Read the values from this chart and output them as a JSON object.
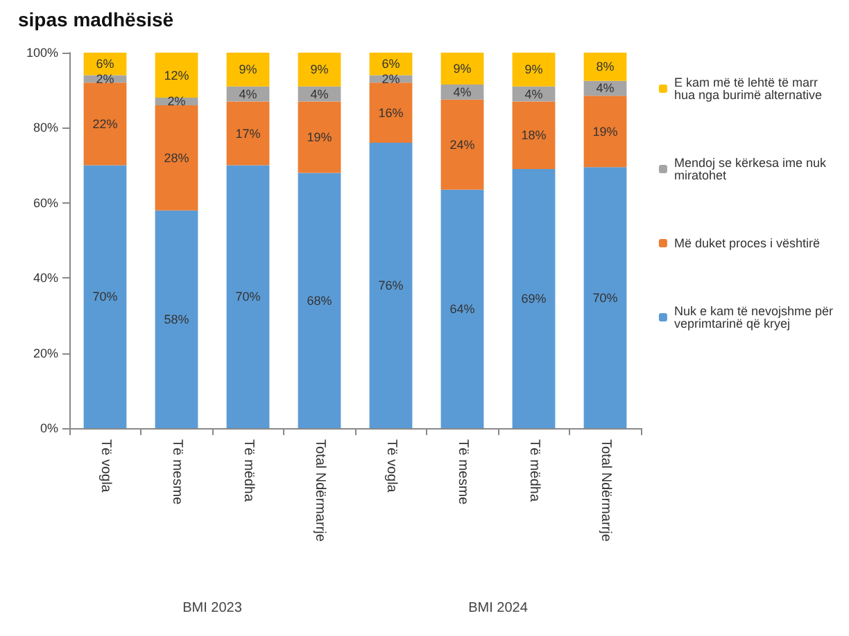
{
  "chart_data": {
    "type": "bar",
    "title": "sipas madhësisë",
    "stacked": true,
    "categories": [
      "Të vogla",
      "Të mesme",
      "Të mëdha",
      "Total Ndërmarrje",
      "Të vogla",
      "Të mesme",
      "Të mëdha",
      "Total Ndërmarrje"
    ],
    "annotations": [
      "BMI 2023",
      "BMI 2024"
    ],
    "series": [
      {
        "name": "Nuk e kam të nevojshme për veprimtarinë që kryej",
        "color": "#5b9bd5",
        "values": [
          70,
          58,
          70,
          68,
          76,
          63.5,
          69,
          69.5
        ],
        "value_labels": [
          "70%",
          "58%",
          "70%",
          "68%",
          "76%",
          "64%",
          "69%",
          "70%"
        ]
      },
      {
        "name": "Më duket proces i vështirë",
        "color": "#ed7d31",
        "values": [
          22,
          28,
          17,
          19,
          16,
          24,
          18,
          19
        ],
        "value_labels": [
          "22%",
          "28%",
          "17%",
          "19%",
          "16%",
          "24%",
          "18%",
          "19%"
        ]
      },
      {
        "name": "Mendoj se kërkesa ime nuk miratohet",
        "color": "#a5a5a5",
        "values": [
          2,
          2,
          4,
          4,
          2,
          4,
          4,
          4
        ],
        "value_labels": [
          "2%",
          "2%",
          "4%",
          "4%",
          "2%",
          "4%",
          "4%",
          "4%"
        ]
      },
      {
        "name": "E kam më të lehtë të marr hua nga burimë alternative",
        "color": "#ffc000",
        "values": [
          6,
          12,
          9,
          9,
          6,
          8.5,
          9,
          7.5
        ],
        "value_labels": [
          "6%",
          "12%",
          "9%",
          "9%",
          "6%",
          "9%",
          "9%",
          "8%"
        ]
      }
    ],
    "ylim": [
      0,
      100
    ],
    "yticks": [
      {
        "value": 0,
        "label": "0%"
      },
      {
        "value": 20,
        "label": "20%"
      },
      {
        "value": 40,
        "label": "40%"
      },
      {
        "value": 60,
        "label": "60%"
      },
      {
        "value": 80,
        "label": "80%"
      },
      {
        "value": 100,
        "label": "100%"
      }
    ],
    "grid": false,
    "legend": "right"
  }
}
